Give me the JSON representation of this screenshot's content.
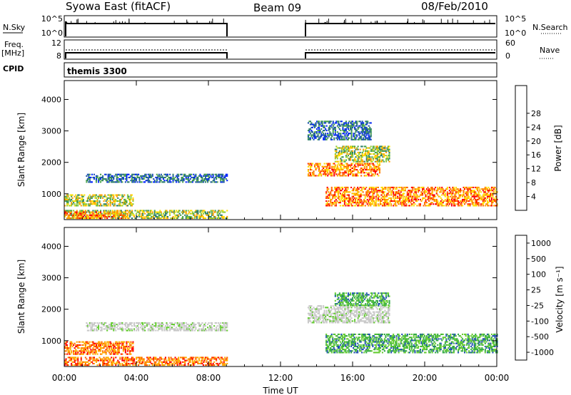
{
  "header": {
    "station": "Syowa East (fitACF)",
    "beam": "Beam 09",
    "date": "08/Feb/2010"
  },
  "noise_panel": {
    "left_label": "N.Sky",
    "left_ticks": [
      "10^5",
      "10^0"
    ],
    "right_label": "N.Search",
    "right_ticks": [
      "10^5",
      "10^0"
    ]
  },
  "freq_panel": {
    "left_label_line1": "Freq.",
    "left_label_line2": "[MHz]",
    "left_ticks": [
      "12",
      "8"
    ],
    "right_label": "Nave",
    "right_ticks": [
      "60",
      "0"
    ]
  },
  "cpid_panel": {
    "label": "CPID",
    "value": "themis 3300"
  },
  "colors": {
    "power": [
      "#0022ff",
      "#1a4fb0",
      "#2f7f6a",
      "#4aa34a",
      "#8fcc3a",
      "#ffe000",
      "#ffa000",
      "#ff6a00",
      "#ff0000"
    ],
    "velocity": [
      "#ff0000",
      "#ff6600",
      "#ffaa00",
      "#c8c8c8",
      "#c8c8c8",
      "#66cc33",
      "#33aa44",
      "#1f4fb5",
      "#1a2fcf"
    ]
  },
  "chart_data": [
    {
      "type": "heatmap",
      "title": "Power",
      "ylabel": "Slant Range [km]",
      "ylim": [
        180,
        4600
      ],
      "xlim_hours": [
        0,
        24
      ],
      "yticks": [
        "1000",
        "2000",
        "3000",
        "4000"
      ],
      "colorbar_label": "Power [dB]",
      "colorbar_ticks": [
        "4",
        "8",
        "12",
        "16",
        "20",
        "24",
        "28"
      ],
      "data_gap_hours": [
        9.0,
        13.5
      ],
      "features": [
        {
          "t0": 0.0,
          "t1": 9.0,
          "r0": 200,
          "r1": 450,
          "level": "moderate"
        },
        {
          "t0": 0.0,
          "t1": 3.5,
          "r0": 200,
          "r1": 400,
          "level": "strong"
        },
        {
          "t0": 0.0,
          "t1": 3.8,
          "r0": 600,
          "r1": 950,
          "level": "moderate"
        },
        {
          "t0": 1.2,
          "t1": 9.0,
          "r0": 1350,
          "r1": 1600,
          "level": "weak"
        },
        {
          "t0": 13.5,
          "t1": 17.5,
          "r0": 1550,
          "r1": 1950,
          "level": "strong"
        },
        {
          "t0": 15.0,
          "t1": 18.0,
          "r0": 2000,
          "r1": 2500,
          "level": "moderate"
        },
        {
          "t0": 14.5,
          "t1": 24.0,
          "r0": 600,
          "r1": 1200,
          "level": "strong"
        },
        {
          "t0": 13.5,
          "t1": 17.0,
          "r0": 2700,
          "r1": 3300,
          "level": "weak"
        }
      ]
    },
    {
      "type": "heatmap",
      "title": "Velocity",
      "ylabel": "Slant Range [km]",
      "ylim": [
        180,
        4600
      ],
      "xlim_hours": [
        0,
        24
      ],
      "yticks": [
        "1000",
        "2000",
        "3000",
        "4000"
      ],
      "xticks": [
        "00:00",
        "04:00",
        "08:00",
        "12:00",
        "16:00",
        "20:00",
        "00:00"
      ],
      "xlabel": "Time UT",
      "colorbar_label": "Velocity [m s⁻¹]",
      "colorbar_ticks": [
        "1000",
        "500",
        "100",
        "25",
        "-25",
        "-100",
        "-500",
        "-1000"
      ],
      "data_gap_hours": [
        9.0,
        13.5
      ],
      "features": [
        {
          "t0": 0.0,
          "t1": 9.0,
          "r0": 200,
          "r1": 450,
          "velocity": "negative"
        },
        {
          "t0": 0.0,
          "t1": 3.8,
          "r0": 550,
          "r1": 950,
          "velocity": "negative"
        },
        {
          "t0": 1.2,
          "t1": 9.0,
          "r0": 1300,
          "r1": 1550,
          "velocity": "near-zero"
        },
        {
          "t0": 13.5,
          "t1": 18.0,
          "r0": 1550,
          "r1": 2100,
          "velocity": "near-zero"
        },
        {
          "t0": 15.0,
          "t1": 18.0,
          "r0": 2100,
          "r1": 2500,
          "velocity": "positive"
        },
        {
          "t0": 14.5,
          "t1": 24.0,
          "r0": 600,
          "r1": 1200,
          "velocity": "positive"
        }
      ]
    }
  ]
}
